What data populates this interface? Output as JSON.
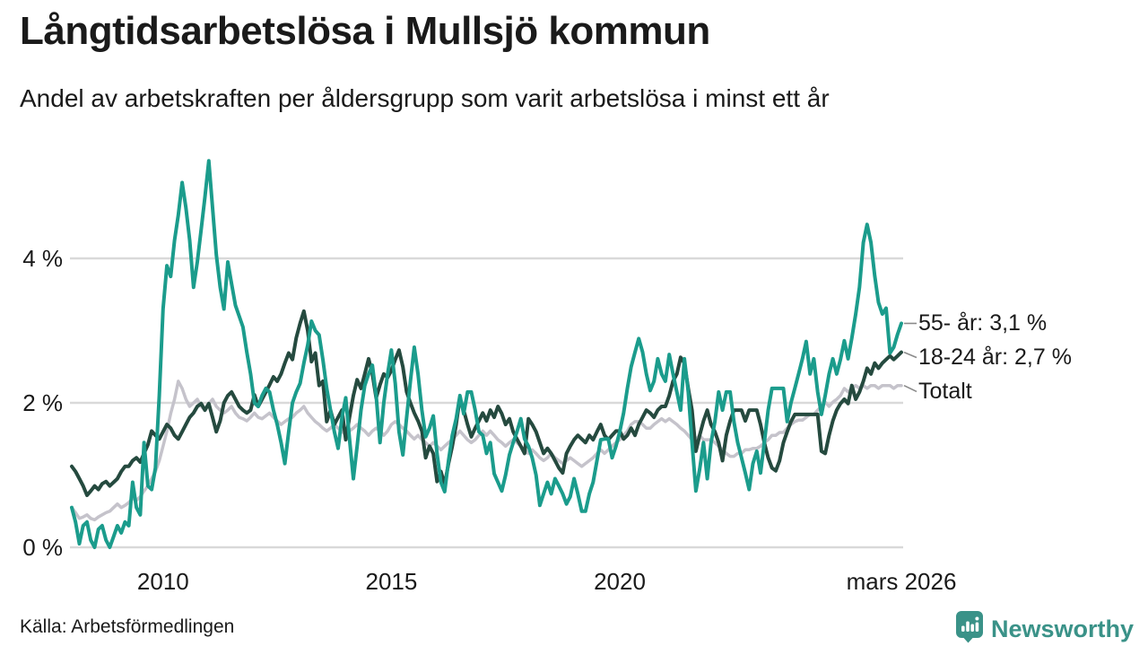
{
  "header": {
    "title": "Långtidsarbetslösa i Mullsjö kommun",
    "subtitle": "Andel av arbetskraften per åldersgrupp som varit arbetslösa i minst ett år"
  },
  "footer": {
    "source": "Källa: Arbetsförmedlingen",
    "brand_name": "Newsworthy",
    "brand_color": "#3a9288",
    "brand_icon": "bar-chart-speech-pin-icon"
  },
  "chart_data": {
    "type": "line",
    "title": "Långtidsarbetslösa i Mullsjö kommun",
    "subtitle": "Andel av arbetskraften per åldersgrupp som varit arbetslösa i minst ett år",
    "x_start_year": 2008.0,
    "x_step_months": 1,
    "x_end_label": "mars 2026",
    "ylim": [
      0,
      5.6
    ],
    "grid": true,
    "grid_color": "#d9d9d9",
    "text_color": "#1a1a1a",
    "connector_color": "#8a8a8a",
    "y_ticks": [
      {
        "value": 0,
        "label": "0 %"
      },
      {
        "value": 2,
        "label": "2 %"
      },
      {
        "value": 4,
        "label": "4 %"
      }
    ],
    "x_ticks": [
      {
        "year": 2010.0,
        "label": "2010"
      },
      {
        "year": 2015.0,
        "label": "2015"
      },
      {
        "year": 2020.0,
        "label": "2020"
      },
      {
        "year": 2026.17,
        "label": "mars 2026"
      }
    ],
    "legend_position": "right-of-line-ends",
    "series": [
      {
        "name": "55- år",
        "slug": "55-ar",
        "legend": "55- år: 3,1 %",
        "end_value": 3.1,
        "color": "#1b9c8c",
        "width": 4,
        "values": [
          0.55,
          0.35,
          0.05,
          0.3,
          0.35,
          0.1,
          0.0,
          0.25,
          0.3,
          0.1,
          0.0,
          0.15,
          0.3,
          0.2,
          0.35,
          0.3,
          0.9,
          0.55,
          0.45,
          1.45,
          0.85,
          0.8,
          1.1,
          2.1,
          3.3,
          3.9,
          3.75,
          4.25,
          4.6,
          5.05,
          4.7,
          4.25,
          3.6,
          3.95,
          4.4,
          4.85,
          5.35,
          4.7,
          4.05,
          3.6,
          3.3,
          3.95,
          3.65,
          3.35,
          3.2,
          3.05,
          2.7,
          2.4,
          2.0,
          1.95,
          2.1,
          2.2,
          2.15,
          1.9,
          1.7,
          1.45,
          1.16,
          1.6,
          2.0,
          2.15,
          2.27,
          2.55,
          2.8,
          3.13,
          3.0,
          2.94,
          2.6,
          2.2,
          1.9,
          1.6,
          1.37,
          1.8,
          2.07,
          1.5,
          0.95,
          1.4,
          1.9,
          2.24,
          2.4,
          2.52,
          2.1,
          1.45,
          2.0,
          2.4,
          2.73,
          2.27,
          1.6,
          1.28,
          1.8,
          2.3,
          2.77,
          2.4,
          1.9,
          1.53,
          1.65,
          1.82,
          1.3,
          0.9,
          0.77,
          1.2,
          1.55,
          1.78,
          2.1,
          1.85,
          2.15,
          2.15,
          1.9,
          1.6,
          1.55,
          1.3,
          1.45,
          1.02,
          0.9,
          0.78,
          1.0,
          1.28,
          1.45,
          1.6,
          1.78,
          1.5,
          1.4,
          1.24,
          1.0,
          0.58,
          0.74,
          0.9,
          0.74,
          0.95,
          0.85,
          0.74,
          0.6,
          0.7,
          0.95,
          0.74,
          0.5,
          0.5,
          0.74,
          0.9,
          1.2,
          1.49,
          1.5,
          1.5,
          1.24,
          1.4,
          1.6,
          1.86,
          2.2,
          2.5,
          2.7,
          2.89,
          2.7,
          2.4,
          2.17,
          2.3,
          2.61,
          2.4,
          2.3,
          2.67,
          2.4,
          2.15,
          1.9,
          2.61,
          2.15,
          1.45,
          0.78,
          1.08,
          1.45,
          0.95,
          1.45,
          1.74,
          2.15,
          1.9,
          2.15,
          2.15,
          1.74,
          1.45,
          1.24,
          1.03,
          0.8,
          1.16,
          1.33,
          1.03,
          1.45,
          1.9,
          2.2,
          2.2,
          2.2,
          2.2,
          1.74,
          2.0,
          2.2,
          2.4,
          2.61,
          2.85,
          2.4,
          2.61,
          2.15,
          1.84,
          2.1,
          2.4,
          2.61,
          2.4,
          2.6,
          2.86,
          2.61,
          2.9,
          3.23,
          3.6,
          4.22,
          4.47,
          4.22,
          3.76,
          3.39,
          3.23,
          3.31,
          2.69,
          2.77,
          2.95,
          3.1
        ]
      },
      {
        "name": "18-24 år",
        "slug": "18-24-ar",
        "legend": "18-24 år: 2,7 %",
        "end_value": 2.7,
        "color": "#254a3f",
        "width": 4,
        "values": [
          1.12,
          1.05,
          0.95,
          0.85,
          0.72,
          0.78,
          0.85,
          0.8,
          0.88,
          0.91,
          0.85,
          0.9,
          0.95,
          1.05,
          1.12,
          1.12,
          1.2,
          1.24,
          1.18,
          1.3,
          1.42,
          1.61,
          1.55,
          1.5,
          1.6,
          1.7,
          1.65,
          1.55,
          1.5,
          1.6,
          1.7,
          1.8,
          1.86,
          1.95,
          1.99,
          1.9,
          1.99,
          1.8,
          1.6,
          1.75,
          2.0,
          2.1,
          2.15,
          2.05,
          1.95,
          1.9,
          1.86,
          1.9,
          2.11,
          1.95,
          2.05,
          2.15,
          2.25,
          2.36,
          2.3,
          2.4,
          2.55,
          2.69,
          2.6,
          2.9,
          3.1,
          3.27,
          3.0,
          2.57,
          2.69,
          2.24,
          2.3,
          1.74,
          1.9,
          1.7,
          1.8,
          1.9,
          1.49,
          1.8,
          2.1,
          2.32,
          2.2,
          2.4,
          2.61,
          2.4,
          2.07,
          2.25,
          2.4,
          2.35,
          2.45,
          2.6,
          2.73,
          2.5,
          2.15,
          2.0,
          1.86,
          1.75,
          1.61,
          1.24,
          1.4,
          1.3,
          0.91,
          1.05,
          0.87,
          1.16,
          1.4,
          1.7,
          2.07,
          1.9,
          1.7,
          1.53,
          1.65,
          1.75,
          1.86,
          1.75,
          1.9,
          1.8,
          1.95,
          1.85,
          1.7,
          1.78,
          1.6,
          1.5,
          1.4,
          1.3,
          1.78,
          1.7,
          1.6,
          1.45,
          1.3,
          1.37,
          1.3,
          1.2,
          1.1,
          1.03,
          1.3,
          1.4,
          1.49,
          1.55,
          1.5,
          1.45,
          1.55,
          1.49,
          1.6,
          1.7,
          1.55,
          1.49,
          1.55,
          1.61,
          1.61,
          1.5,
          1.55,
          1.65,
          1.55,
          1.7,
          1.8,
          1.9,
          1.86,
          1.8,
          1.9,
          1.95,
          1.95,
          2.1,
          2.3,
          2.4,
          2.63,
          2.55,
          2.2,
          1.9,
          1.33,
          1.55,
          1.75,
          1.9,
          1.7,
          1.6,
          1.45,
          1.2,
          1.55,
          1.75,
          1.9,
          1.9,
          1.9,
          1.75,
          1.9,
          1.9,
          1.9,
          1.7,
          1.45,
          1.24,
          1.1,
          1.06,
          1.2,
          1.45,
          1.6,
          1.74,
          1.84,
          1.84,
          1.84,
          1.84,
          1.84,
          1.84,
          1.84,
          1.33,
          1.3,
          1.55,
          1.75,
          1.9,
          1.99,
          2.05,
          1.99,
          2.24,
          2.05,
          2.15,
          2.3,
          2.48,
          2.4,
          2.55,
          2.48,
          2.55,
          2.6,
          2.65,
          2.6,
          2.65,
          2.7
        ]
      },
      {
        "name": "Totalt",
        "slug": "totalt",
        "legend": "Totalt",
        "end_value": 2.24,
        "color": "#c5c3cb",
        "width": 3.5,
        "values": [
          0.55,
          0.48,
          0.4,
          0.42,
          0.45,
          0.4,
          0.38,
          0.42,
          0.45,
          0.48,
          0.5,
          0.55,
          0.6,
          0.55,
          0.58,
          0.62,
          0.68,
          0.65,
          0.7,
          0.78,
          0.85,
          0.95,
          1.05,
          1.2,
          1.4,
          1.61,
          1.85,
          2.05,
          2.3,
          2.2,
          2.05,
          1.95,
          2.0,
          2.05,
          1.95,
          1.9,
          1.99,
          2.05,
          1.95,
          1.9,
          1.86,
          1.9,
          1.95,
          1.86,
          1.8,
          1.78,
          1.75,
          1.8,
          1.86,
          1.8,
          1.78,
          1.82,
          1.86,
          1.8,
          1.75,
          1.7,
          1.74,
          1.78,
          1.8,
          1.86,
          1.9,
          1.95,
          1.86,
          1.8,
          1.74,
          1.7,
          1.65,
          1.61,
          1.65,
          1.7,
          1.65,
          1.61,
          1.55,
          1.61,
          1.65,
          1.7,
          1.65,
          1.61,
          1.55,
          1.61,
          1.65,
          1.61,
          1.55,
          1.61,
          1.7,
          1.74,
          1.7,
          1.65,
          1.61,
          1.55,
          1.5,
          1.55,
          1.49,
          1.45,
          1.4,
          1.45,
          1.4,
          1.35,
          1.4,
          1.45,
          1.49,
          1.55,
          1.61,
          1.55,
          1.49,
          1.45,
          1.49,
          1.55,
          1.61,
          1.55,
          1.61,
          1.55,
          1.49,
          1.45,
          1.4,
          1.45,
          1.49,
          1.45,
          1.4,
          1.35,
          1.3,
          1.35,
          1.3,
          1.24,
          1.2,
          1.24,
          1.3,
          1.24,
          1.2,
          1.16,
          1.2,
          1.24,
          1.2,
          1.16,
          1.12,
          1.16,
          1.2,
          1.24,
          1.3,
          1.35,
          1.3,
          1.35,
          1.4,
          1.45,
          1.49,
          1.55,
          1.61,
          1.7,
          1.74,
          1.74,
          1.7,
          1.65,
          1.65,
          1.7,
          1.74,
          1.78,
          1.74,
          1.78,
          1.74,
          1.7,
          1.65,
          1.61,
          1.55,
          1.49,
          1.49,
          1.55,
          1.49,
          1.49,
          1.49,
          1.45,
          1.4,
          1.35,
          1.3,
          1.26,
          1.26,
          1.3,
          1.3,
          1.35,
          1.35,
          1.37,
          1.37,
          1.4,
          1.45,
          1.49,
          1.55,
          1.55,
          1.59,
          1.59,
          1.65,
          1.7,
          1.74,
          1.76,
          1.76,
          1.8,
          1.84,
          1.84,
          1.9,
          1.95,
          2.01,
          1.95,
          2.01,
          2.05,
          2.1,
          2.2,
          2.15,
          2.2,
          2.24,
          2.2,
          2.24,
          2.2,
          2.24,
          2.24,
          2.2,
          2.24,
          2.24,
          2.24,
          2.2,
          2.24,
          2.24
        ]
      }
    ]
  }
}
